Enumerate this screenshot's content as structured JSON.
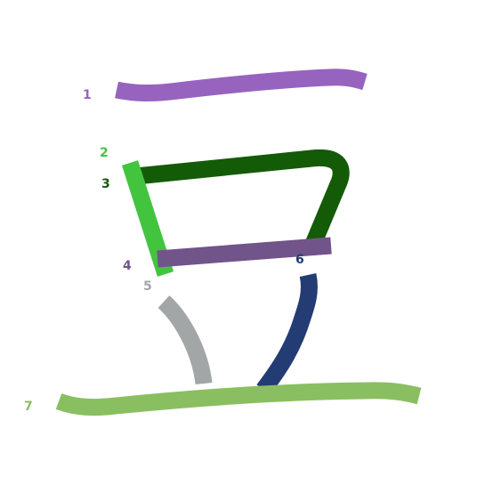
{
  "diagram": {
    "strokes": [
      {
        "number": "1",
        "color": "#9664bf"
      },
      {
        "number": "2",
        "color": "#43c43f"
      },
      {
        "number": "3",
        "color": "#145b07"
      },
      {
        "number": "4",
        "color": "#71548a"
      },
      {
        "number": "5",
        "color": "#a2a6a6"
      },
      {
        "number": "6",
        "color": "#233c74"
      },
      {
        "number": "7",
        "color": "#8abf61"
      }
    ]
  }
}
